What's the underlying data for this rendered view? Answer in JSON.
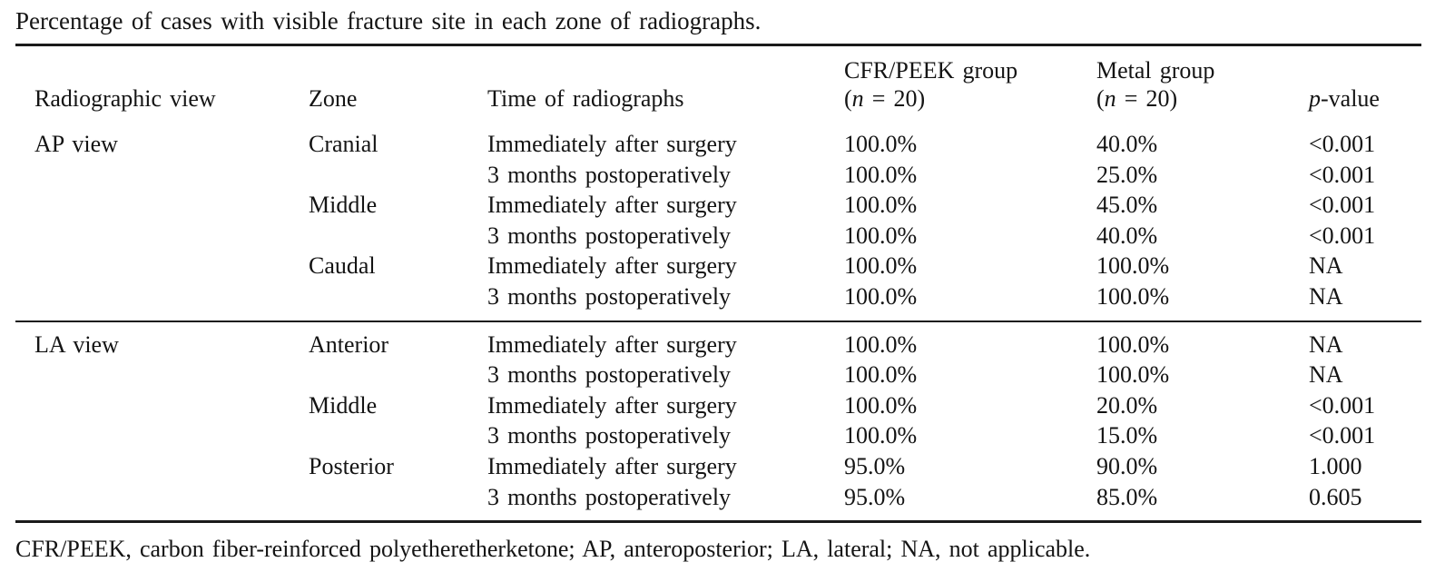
{
  "caption": "Percentage of cases with visible fracture site in each zone of radiographs.",
  "table": {
    "headers": {
      "view": "Radiographic view",
      "zone": "Zone",
      "time": "Time of radiographs",
      "cfr_line1": "CFR/PEEK group",
      "metal_line1": "Metal group",
      "n_open": "(",
      "n_var": "n",
      "n_rest": " = 20)",
      "p_var": "p",
      "p_rest": "-value"
    },
    "rows": [
      {
        "view": "AP view",
        "zone": "Cranial",
        "time": "Immediately after surgery",
        "cfr": "100.0%",
        "metal": "40.0%",
        "p": "<0.001"
      },
      {
        "view": "",
        "zone": "",
        "time": "3 months postoperatively",
        "cfr": "100.0%",
        "metal": "25.0%",
        "p": "<0.001"
      },
      {
        "view": "",
        "zone": "Middle",
        "time": "Immediately after surgery",
        "cfr": "100.0%",
        "metal": "45.0%",
        "p": "<0.001"
      },
      {
        "view": "",
        "zone": "",
        "time": "3 months postoperatively",
        "cfr": "100.0%",
        "metal": "40.0%",
        "p": "<0.001"
      },
      {
        "view": "",
        "zone": "Caudal",
        "time": "Immediately after surgery",
        "cfr": "100.0%",
        "metal": "100.0%",
        "p": "NA"
      },
      {
        "view": "",
        "zone": "",
        "time": "3 months postoperatively",
        "cfr": "100.0%",
        "metal": "100.0%",
        "p": "NA"
      },
      {
        "view": "LA view",
        "zone": "Anterior",
        "time": "Immediately after surgery",
        "cfr": "100.0%",
        "metal": "100.0%",
        "p": "NA"
      },
      {
        "view": "",
        "zone": "",
        "time": "3 months postoperatively",
        "cfr": "100.0%",
        "metal": "100.0%",
        "p": "NA"
      },
      {
        "view": "",
        "zone": "Middle",
        "time": "Immediately after surgery",
        "cfr": "100.0%",
        "metal": "20.0%",
        "p": "<0.001"
      },
      {
        "view": "",
        "zone": "",
        "time": "3 months postoperatively",
        "cfr": "100.0%",
        "metal": "15.0%",
        "p": "<0.001"
      },
      {
        "view": "",
        "zone": "Posterior",
        "time": "Immediately after surgery",
        "cfr": "95.0%",
        "metal": "90.0%",
        "p": "1.000"
      },
      {
        "view": "",
        "zone": "",
        "time": "3 months postoperatively",
        "cfr": "95.0%",
        "metal": "85.0%",
        "p": "0.605"
      }
    ]
  },
  "footnote": "CFR/PEEK, carbon fiber-reinforced polyetheretherketone; AP, anteroposterior; LA, lateral; NA, not applicable.",
  "colors": {
    "text": "#141414",
    "rule": "#1a1a1a",
    "background": "#ffffff"
  }
}
